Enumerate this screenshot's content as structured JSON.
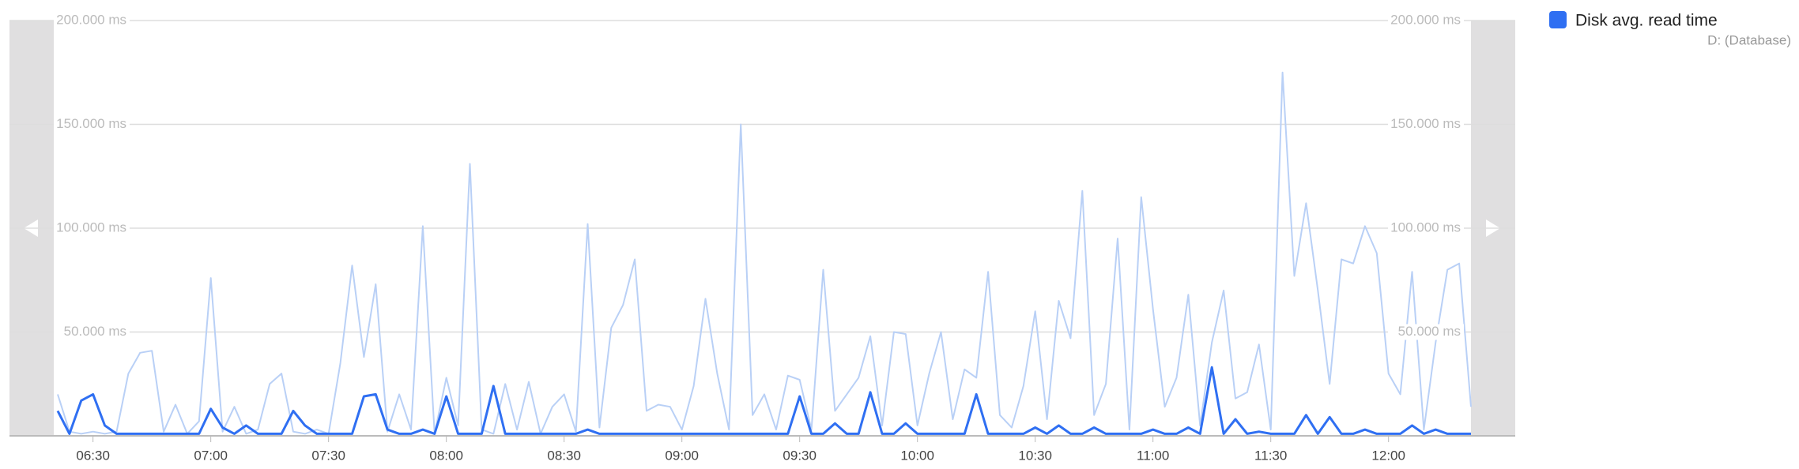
{
  "chart_data": {
    "type": "line",
    "legend_subtitle": "D: (Database)",
    "xlim": [
      "06:20",
      "12:21"
    ],
    "xticks": [
      "06:30",
      "07:00",
      "07:30",
      "08:00",
      "08:30",
      "09:00",
      "09:30",
      "10:00",
      "10:30",
      "11:00",
      "11:30",
      "12:00"
    ],
    "ylim": [
      0,
      200
    ],
    "yticks": [
      {
        "value": 50,
        "label": "50.000 ms"
      },
      {
        "value": 100,
        "label": "100.000 ms"
      },
      {
        "value": 150,
        "label": "150.000 ms"
      },
      {
        "value": 200,
        "label": "200.000 ms"
      }
    ],
    "y2lim": [
      0,
      200
    ],
    "y2ticks": [
      {
        "value": 50,
        "label": "50.000 ms"
      },
      {
        "value": 100,
        "label": "100.000 ms"
      },
      {
        "value": 150,
        "label": "150.000 ms"
      },
      {
        "value": 200,
        "label": "200.000 ms"
      }
    ],
    "grid": true,
    "legend_position": "top-right",
    "x": [
      "06:21",
      "06:24",
      "06:27",
      "06:30",
      "06:33",
      "06:36",
      "06:39",
      "06:42",
      "06:45",
      "06:48",
      "06:51",
      "06:54",
      "06:57",
      "07:00",
      "07:03",
      "07:06",
      "07:09",
      "07:12",
      "07:15",
      "07:18",
      "07:21",
      "07:24",
      "07:27",
      "07:30",
      "07:33",
      "07:36",
      "07:39",
      "07:42",
      "07:45",
      "07:48",
      "07:51",
      "07:54",
      "07:57",
      "08:00",
      "08:03",
      "08:06",
      "08:09",
      "08:12",
      "08:15",
      "08:18",
      "08:21",
      "08:24",
      "08:27",
      "08:30",
      "08:33",
      "08:36",
      "08:39",
      "08:42",
      "08:45",
      "08:48",
      "08:51",
      "08:54",
      "08:57",
      "09:00",
      "09:03",
      "09:06",
      "09:09",
      "09:12",
      "09:15",
      "09:18",
      "09:21",
      "09:24",
      "09:27",
      "09:30",
      "09:33",
      "09:36",
      "09:39",
      "09:42",
      "09:45",
      "09:48",
      "09:51",
      "09:54",
      "09:57",
      "10:00",
      "10:03",
      "10:06",
      "10:09",
      "10:12",
      "10:15",
      "10:18",
      "10:21",
      "10:24",
      "10:27",
      "10:30",
      "10:33",
      "10:36",
      "10:39",
      "10:42",
      "10:45",
      "10:48",
      "10:51",
      "10:54",
      "10:57",
      "11:00",
      "11:03",
      "11:06",
      "11:09",
      "11:12",
      "11:15",
      "11:18",
      "11:21",
      "11:24",
      "11:27",
      "11:30",
      "11:33",
      "11:36",
      "11:39",
      "11:42",
      "11:45",
      "11:48",
      "11:51",
      "11:54",
      "11:57",
      "12:00",
      "12:03",
      "12:06",
      "12:09",
      "12:12",
      "12:15",
      "12:18",
      "12:21"
    ],
    "series": [
      {
        "color": "#b9d0f6",
        "values": [
          20,
          2,
          1,
          2,
          1,
          2,
          30,
          40,
          41,
          2,
          15,
          1,
          7,
          76,
          2,
          14,
          1,
          3,
          25,
          30,
          2,
          1,
          3,
          1,
          35,
          82,
          38,
          73,
          2,
          20,
          3,
          101,
          1,
          28,
          5,
          131,
          3,
          1,
          25,
          3,
          26,
          1,
          14,
          20,
          2,
          102,
          4,
          52,
          63,
          85,
          12,
          15,
          14,
          3,
          24,
          66,
          30,
          3,
          150,
          10,
          20,
          3,
          29,
          27,
          3,
          80,
          12,
          20,
          28,
          48,
          5,
          50,
          49,
          5,
          30,
          50,
          8,
          32,
          28,
          79,
          10,
          4,
          24,
          60,
          8,
          65,
          47,
          118,
          10,
          25,
          95,
          3,
          115,
          61,
          14,
          28,
          68,
          5,
          45,
          70,
          18,
          21,
          44,
          3,
          175,
          77,
          112,
          70,
          25,
          85,
          83,
          101,
          88,
          30,
          20,
          79,
          3,
          45,
          80,
          83,
          14
        ]
      },
      {
        "name": "Disk avg. read time",
        "color": "#2f6ff2",
        "values": [
          12,
          1,
          17,
          20,
          5,
          1,
          1,
          1,
          1,
          1,
          1,
          1,
          1,
          13,
          4,
          1,
          5,
          1,
          1,
          1,
          12,
          5,
          1,
          1,
          1,
          1,
          19,
          20,
          3,
          1,
          1,
          3,
          1,
          19,
          1,
          1,
          1,
          24,
          1,
          1,
          1,
          1,
          1,
          1,
          1,
          3,
          1,
          1,
          1,
          1,
          1,
          1,
          1,
          1,
          1,
          1,
          1,
          1,
          1,
          1,
          1,
          1,
          1,
          19,
          1,
          1,
          6,
          1,
          1,
          21,
          1,
          1,
          6,
          1,
          1,
          1,
          1,
          1,
          20,
          1,
          1,
          1,
          1,
          4,
          1,
          5,
          1,
          1,
          4,
          1,
          1,
          1,
          1,
          3,
          1,
          1,
          4,
          1,
          33,
          1,
          8,
          1,
          2,
          1,
          1,
          1,
          10,
          1,
          9,
          1,
          1,
          3,
          1,
          1,
          1,
          5,
          1,
          3,
          1,
          1,
          1
        ]
      }
    ]
  }
}
